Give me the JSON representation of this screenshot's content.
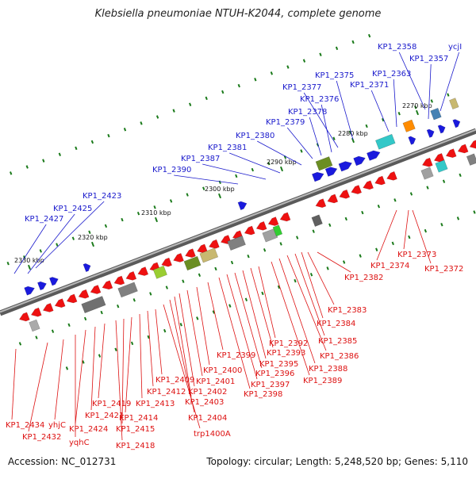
{
  "title": "Klebsiella pneumoniae NTUH-K2044, complete genome",
  "accession_text": "Accession: NC_012731",
  "summary_text": "Topology: circular; Length: 5,248,520 bp; Genes: 5,110",
  "colors": {
    "backbone": "#808080",
    "top_label": "#1a1acc",
    "bottom_label": "#dd1111",
    "forward_gene": "#1a1add",
    "reverse_gene": "#ee1111",
    "tick": "#1a7a1a"
  },
  "ruler_ticks": [
    "2270 kbp",
    "2280 kbp",
    "2290 kbp",
    "2300 kbp",
    "2310 kbp",
    "2320 kbp",
    "2330 kbp"
  ],
  "top_labels": [
    "KP1_2358",
    "ycjI",
    "KP1_2357",
    "KP1_2363",
    "KP1_2375",
    "KP1_2371",
    "KP1_2377",
    "KP1_2376",
    "KP1_2378",
    "KP1_2379",
    "KP1_2380",
    "KP1_2381",
    "KP1_2387",
    "KP1_2390",
    "KP1_2423",
    "KP1_2425",
    "KP1_2427"
  ],
  "bottom_labels": [
    "KP1_2373",
    "KP1_2374",
    "KP1_2372",
    "KP1_2382",
    "KP1_2383",
    "KP1_2384",
    "KP1_2385",
    "KP1_2386",
    "KP1_2388",
    "KP1_2389",
    "KP1_2392",
    "KP1_2393",
    "KP1_2395",
    "KP1_2396",
    "KP1_2397",
    "KP1_2398",
    "KP1_2399",
    "KP1_2400",
    "KP1_2401",
    "KP1_2402",
    "KP1_2403",
    "KP1_2404",
    "trp1400A",
    "KP1_2409",
    "KP1_2412",
    "KP1_2413",
    "KP1_2414",
    "KP1_2415",
    "KP1_2418",
    "KP1_2419",
    "KP1_2421",
    "KP1_2424",
    "yqhC",
    "yhjC",
    "KP1_2432",
    "KP1_2434"
  ]
}
